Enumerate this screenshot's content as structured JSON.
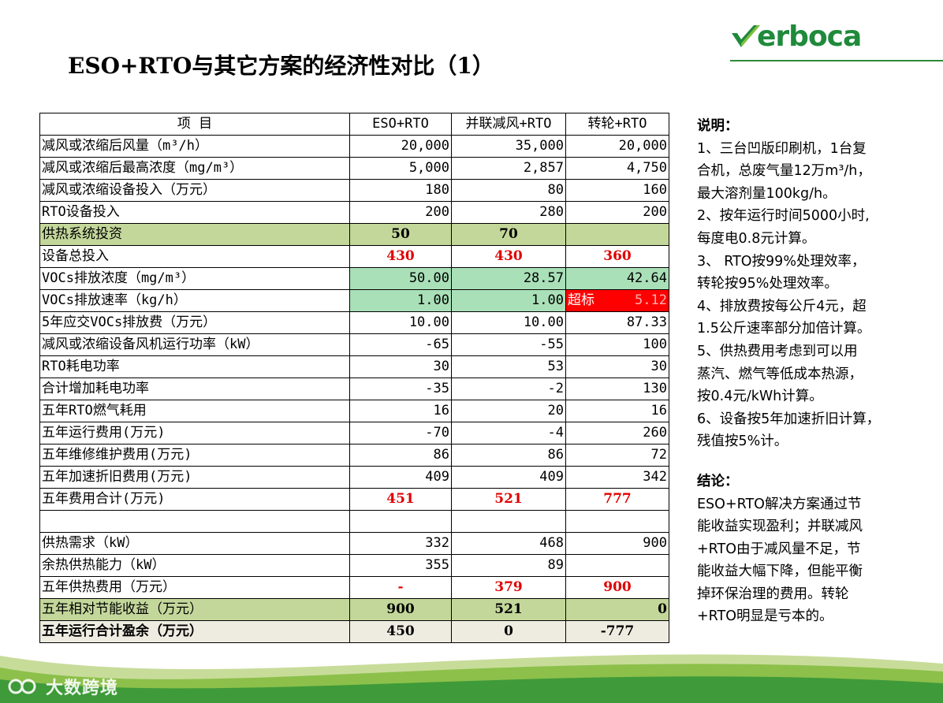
{
  "logo": {
    "text": "erboca"
  },
  "title": "ESO+RTO与其它方案的经济性对比（1）",
  "table": {
    "header": [
      "项    目",
      "ESO+RTO",
      "并联减风+RTO",
      "转轮+RTO"
    ],
    "rows": [
      {
        "label": "减风或浓缩后风量（m³/h）",
        "values": [
          "20,000",
          "35,000",
          "20,000"
        ]
      },
      {
        "label": "减风或浓缩后最高浓度（mg/m³）",
        "values": [
          "5,000",
          "2,857",
          "4,750"
        ]
      },
      {
        "label": "减风或浓缩设备投入（万元）",
        "values": [
          "180",
          "80",
          "160"
        ]
      },
      {
        "label": "RTO设备投入",
        "values": [
          "200",
          "280",
          "200"
        ]
      },
      {
        "label": "供热系统投资",
        "values": [
          "50",
          "70",
          ""
        ]
      },
      {
        "label": "设备总投入",
        "values": [
          "430",
          "430",
          "360"
        ]
      },
      {
        "label": "VOCs排放浓度（mg/m³）",
        "values": [
          "50.00",
          "28.57",
          "42.64"
        ]
      },
      {
        "label": "VOCs排放速率（kg/h）",
        "values": [
          "1.00",
          "1.00",
          "5.12"
        ],
        "exceed_tag": "超标"
      },
      {
        "label": "5年应交VOCs排放费（万元）",
        "values": [
          "10.00",
          "10.00",
          "87.33"
        ]
      },
      {
        "label": "减风或浓缩设备风机运行功率（kW）",
        "values": [
          "-65",
          "-55",
          "100"
        ]
      },
      {
        "label": "RTO耗电功率",
        "values": [
          "30",
          "53",
          "30"
        ]
      },
      {
        "label": "合计增加耗电功率",
        "values": [
          "-35",
          "-2",
          "130"
        ]
      },
      {
        "label": "五年RTO燃气耗用",
        "values": [
          "16",
          "20",
          "16"
        ]
      },
      {
        "label": "五年运行费用(万元)",
        "values": [
          "-70",
          "-4",
          "260"
        ]
      },
      {
        "label": "五年维修维护费用(万元)",
        "values": [
          "86",
          "86",
          "72"
        ]
      },
      {
        "label": "五年加速折旧费用(万元)",
        "values": [
          "409",
          "409",
          "342"
        ]
      },
      {
        "label": "五年费用合计(万元)",
        "values": [
          "451",
          "521",
          "777"
        ]
      },
      {
        "label": "",
        "values": [
          "",
          "",
          ""
        ]
      },
      {
        "label": "供热需求（kW）",
        "values": [
          "332",
          "468",
          "900"
        ]
      },
      {
        "label": "余热供热能力（kW）",
        "values": [
          "355",
          "89",
          ""
        ]
      },
      {
        "label": "五年供热费用（万元）",
        "values": [
          "-",
          "379",
          "900"
        ]
      },
      {
        "label": "五年相对节能收益（万元）",
        "values": [
          "900",
          "521",
          "0"
        ]
      },
      {
        "label": "五年运行合计盈余（万元）",
        "values": [
          "450",
          "0",
          "-777"
        ]
      }
    ]
  },
  "notes": {
    "heading": "说明：",
    "lines": [
      "1、三台凹版印刷机，1台复",
      "合机，总废气量12万m³/h，",
      "最大溶剂量100kg/h。",
      "2、按年运行时间5000小时,",
      "每度电0.8元计算。",
      "3、 RTO按99%处理效率，",
      "转轮按95%处理效率。",
      "4、排放费按每公斤4元，超",
      "1.5公斤速率部分加倍计算。",
      "5、供热费用考虑到可以用",
      "蒸汽、燃气等低成本热源，",
      "按0.4元/kWh计算。",
      "6、设备按5年加速折旧计算，",
      "残值按5%计。"
    ],
    "conclusion_heading": "结论：",
    "conclusion_lines": [
      "ESO+RTO解决方案通过节",
      "能收益实现盈利；并联减风",
      "+RTO由于减风量不足，节",
      "能收益大幅下降，但能平衡",
      "掉环保治理的费用。转轮",
      "+RTO明显是亏本的。"
    ]
  },
  "watermark": {
    "text": "大数跨境"
  },
  "colors": {
    "olive": "#c4d79b",
    "green": "#a9e0b8",
    "beige": "#eeece1",
    "red": "#ff0000",
    "brand": "#1f8a3b"
  }
}
